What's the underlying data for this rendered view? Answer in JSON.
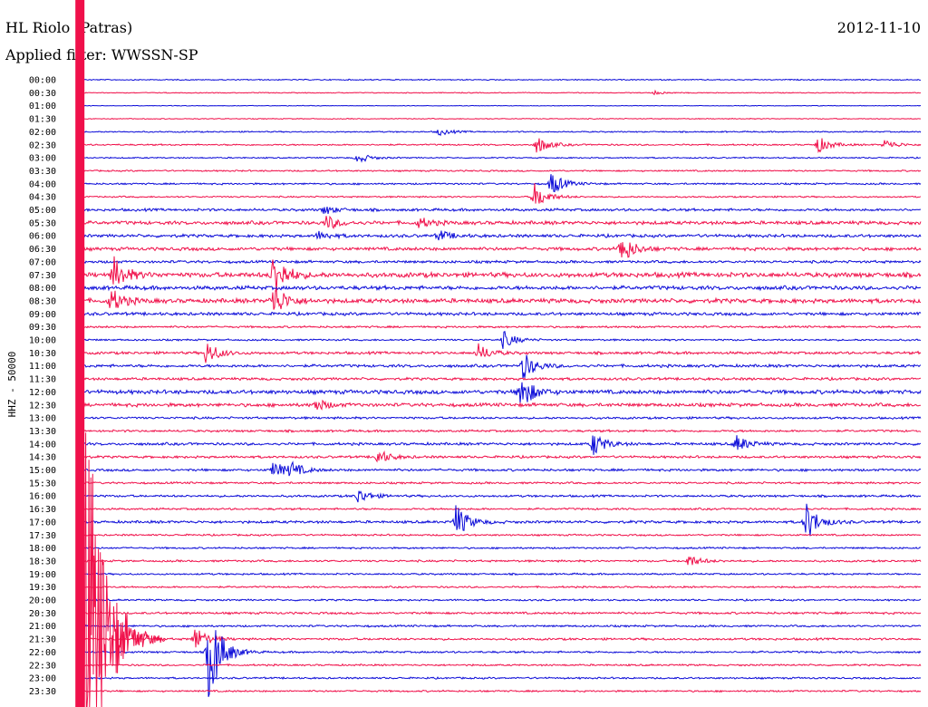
{
  "header": {
    "station": "HL Riolo (Patras)",
    "date": "2012-11-10",
    "filter": "Applied filter: WWSSN-SP"
  },
  "chart_data": {
    "type": "line",
    "ylabel": "HHZ - 50000",
    "colors": {
      "odd_trace": "#0b0bd8",
      "even_trace": "#f0104a"
    },
    "rows": [
      "00:00",
      "00:30",
      "01:00",
      "01:30",
      "02:00",
      "02:30",
      "03:00",
      "03:30",
      "04:00",
      "04:30",
      "05:00",
      "05:30",
      "06:00",
      "06:30",
      "07:00",
      "07:30",
      "08:00",
      "08:30",
      "09:00",
      "09:30",
      "10:00",
      "10:30",
      "11:00",
      "11:30",
      "12:00",
      "12:30",
      "13:00",
      "13:30",
      "14:00",
      "14:30",
      "15:00",
      "15:30",
      "16:00",
      "16:30",
      "17:00",
      "17:30",
      "18:00",
      "18:30",
      "19:00",
      "19:30",
      "20:00",
      "20:30",
      "21:00",
      "21:30",
      "22:00",
      "22:30",
      "23:00",
      "23:30"
    ],
    "xlim_minutes": [
      0,
      30
    ],
    "noise_level": [
      0.5,
      0.4,
      0.3,
      0.4,
      0.6,
      0.7,
      0.6,
      0.7,
      0.8,
      0.7,
      1.2,
      1.6,
      1.4,
      1.5,
      1.2,
      2.2,
      1.8,
      2.0,
      1.4,
      0.9,
      0.8,
      1.2,
      1.3,
      1.2,
      1.8,
      1.6,
      1.0,
      1.0,
      1.2,
      1.1,
      1.1,
      0.9,
      1.0,
      0.9,
      1.2,
      0.8,
      0.8,
      0.9,
      0.8,
      0.8,
      0.8,
      1.0,
      0.9,
      1.0,
      0.9,
      0.8,
      0.8,
      0.8
    ],
    "events": [
      {
        "row": "00:30",
        "t": 20.5,
        "amp": 2
      },
      {
        "row": "02:00",
        "t": 12.8,
        "amp": 4
      },
      {
        "row": "02:30",
        "t": 16.3,
        "amp": 10
      },
      {
        "row": "02:30",
        "t": 26.3,
        "amp": 10
      },
      {
        "row": "02:30",
        "t": 28.7,
        "amp": 6
      },
      {
        "row": "03:00",
        "t": 9.9,
        "amp": 6
      },
      {
        "row": "04:00",
        "t": 16.8,
        "amp": 14
      },
      {
        "row": "04:30",
        "t": 16.2,
        "amp": 16
      },
      {
        "row": "05:00",
        "t": 8.7,
        "amp": 5
      },
      {
        "row": "05:30",
        "t": 8.8,
        "amp": 8
      },
      {
        "row": "05:30",
        "t": 12.1,
        "amp": 6
      },
      {
        "row": "06:00",
        "t": 8.5,
        "amp": 5
      },
      {
        "row": "06:00",
        "t": 12.8,
        "amp": 6
      },
      {
        "row": "06:30",
        "t": 19.3,
        "amp": 18
      },
      {
        "row": "07:30",
        "t": 1.2,
        "amp": 20
      },
      {
        "row": "07:30",
        "t": 6.9,
        "amp": 28
      },
      {
        "row": "08:30",
        "t": 1.1,
        "amp": 14
      },
      {
        "row": "08:30",
        "t": 6.9,
        "amp": 20
      },
      {
        "row": "10:00",
        "t": 15.1,
        "amp": 10
      },
      {
        "row": "10:30",
        "t": 4.5,
        "amp": 14
      },
      {
        "row": "10:30",
        "t": 14.2,
        "amp": 10
      },
      {
        "row": "11:00",
        "t": 15.8,
        "amp": 16
      },
      {
        "row": "12:00",
        "t": 15.7,
        "amp": 22
      },
      {
        "row": "12:30",
        "t": 8.4,
        "amp": 7
      },
      {
        "row": "14:00",
        "t": 18.3,
        "amp": 14
      },
      {
        "row": "14:00",
        "t": 23.4,
        "amp": 10
      },
      {
        "row": "14:30",
        "t": 10.6,
        "amp": 9
      },
      {
        "row": "15:00",
        "t": 6.9,
        "amp": 10
      },
      {
        "row": "15:00",
        "t": 7.5,
        "amp": 8
      },
      {
        "row": "16:00",
        "t": 9.9,
        "amp": 9
      },
      {
        "row": "17:00",
        "t": 13.4,
        "amp": 20
      },
      {
        "row": "17:00",
        "t": 25.9,
        "amp": 22
      },
      {
        "row": "18:30",
        "t": 21.7,
        "amp": 7
      },
      {
        "row": "21:30",
        "t": 4.1,
        "amp": 14
      },
      {
        "row": "22:00",
        "t": 4.6,
        "amp": 60
      }
    ],
    "major_quake": {
      "row": "21:30",
      "t": 0.2,
      "amp": 300
    }
  }
}
